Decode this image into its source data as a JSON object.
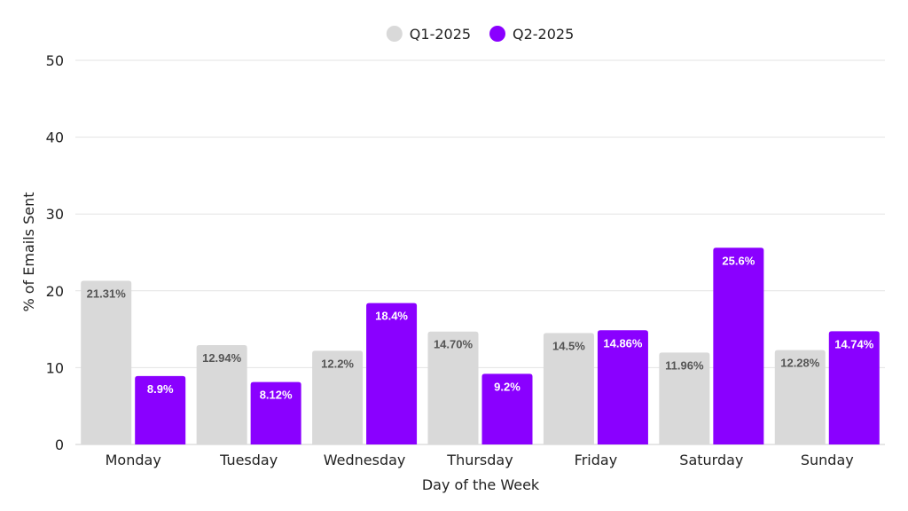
{
  "chart_data": {
    "type": "bar",
    "title": "",
    "xlabel": "Day of the Week",
    "ylabel": "% of Emails Sent",
    "ylim": [
      0,
      50
    ],
    "yticks": [
      0,
      10,
      20,
      30,
      40,
      50
    ],
    "grid": true,
    "legend_position": "top-center",
    "categories": [
      "Monday",
      "Tuesday",
      "Wednesday",
      "Thursday",
      "Friday",
      "Saturday",
      "Sunday"
    ],
    "series": [
      {
        "name": "Q1-2025",
        "color": "#d9d9d9",
        "label_color": "#555555",
        "values": [
          21.31,
          12.94,
          12.2,
          14.7,
          14.5,
          11.96,
          12.28
        ],
        "labels": [
          "21.31%",
          "12.94%",
          "12.2%",
          "14.70%",
          "14.5%",
          "11.96%",
          "12.28%"
        ]
      },
      {
        "name": "Q2-2025",
        "color": "#8a00ff",
        "label_color": "#ffffff",
        "values": [
          8.9,
          8.12,
          18.4,
          9.2,
          14.86,
          25.6,
          14.74
        ],
        "labels": [
          "8.9%",
          "8.12%",
          "18.4%",
          "9.2%",
          "14.86%",
          "25.6%",
          "14.74%"
        ]
      }
    ]
  }
}
